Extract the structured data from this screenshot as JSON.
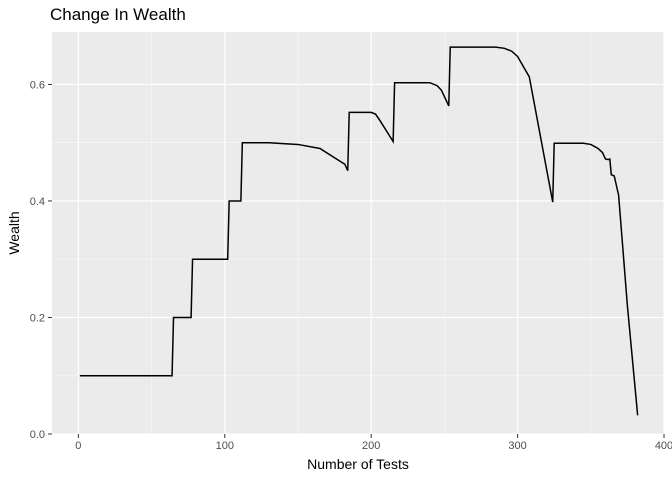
{
  "chart_data": {
    "type": "line",
    "title": "Change In Wealth",
    "xlabel": "Number of Tests",
    "ylabel": "Wealth",
    "xlim": [
      -18,
      400
    ],
    "ylim": [
      0,
      0.69
    ],
    "x_ticks": [
      0,
      100,
      200,
      300,
      400
    ],
    "y_ticks": [
      0.0,
      0.2,
      0.4,
      0.6
    ],
    "x_tick_labels": [
      "0",
      "100",
      "200",
      "300",
      "400"
    ],
    "y_tick_labels": [
      "0.0",
      "0.2",
      "0.4",
      "0.6"
    ],
    "grid": true,
    "legend": "none",
    "colors": {
      "panel": "#ebebeb",
      "grid_major": "#ffffff",
      "line": "#000000",
      "tick_text": "#4d4d4d"
    },
    "series": [
      {
        "x": [
          1,
          64,
          65,
          77,
          78,
          102,
          103,
          111,
          112,
          130,
          150,
          165,
          182,
          184,
          185,
          200,
          203,
          206,
          215,
          216,
          240,
          245,
          248,
          253,
          254,
          285,
          291,
          296,
          300,
          308,
          324,
          325,
          345,
          350,
          355,
          358,
          360,
          362,
          363,
          364,
          366,
          369,
          375,
          382
        ],
        "y": [
          0.1,
          0.1,
          0.2,
          0.2,
          0.3,
          0.3,
          0.4,
          0.4,
          0.5,
          0.5,
          0.497,
          0.49,
          0.463,
          0.452,
          0.552,
          0.552,
          0.549,
          0.538,
          0.502,
          0.603,
          0.603,
          0.598,
          0.59,
          0.563,
          0.664,
          0.664,
          0.662,
          0.657,
          0.648,
          0.613,
          0.398,
          0.499,
          0.499,
          0.497,
          0.49,
          0.483,
          0.472,
          0.471,
          0.472,
          0.445,
          0.443,
          0.41,
          0.22,
          0.032
        ]
      }
    ]
  }
}
